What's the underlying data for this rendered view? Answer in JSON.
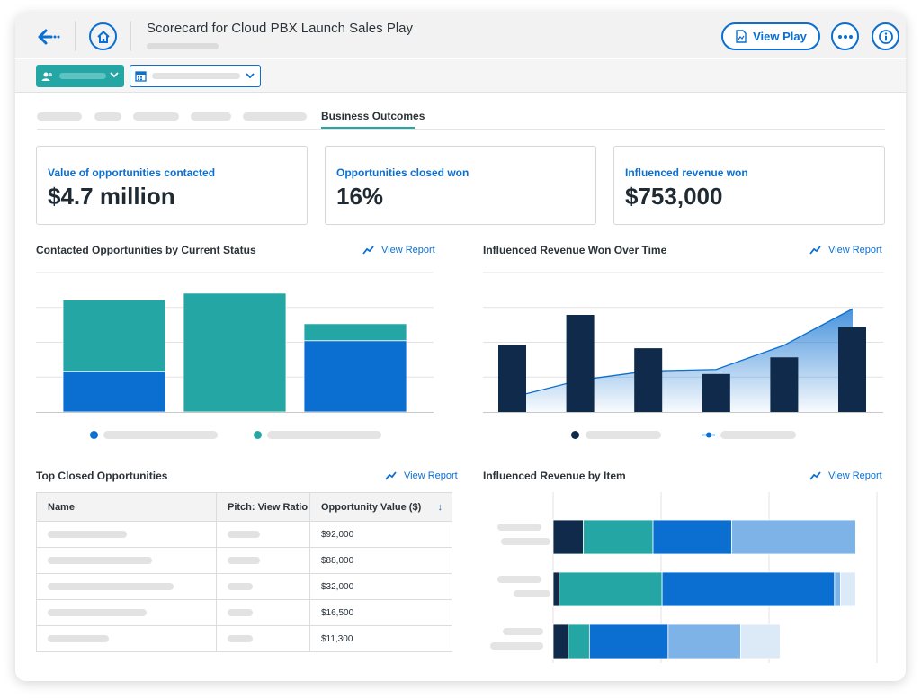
{
  "header": {
    "title": "Scorecard for Cloud PBX Launch Sales Play",
    "view_play_label": "View Play"
  },
  "tabs": {
    "active_label": "Business Outcomes"
  },
  "kpis": [
    {
      "label": "Value of opportunities contacted",
      "value": "$4.7 million"
    },
    {
      "label": "Opportunities closed won",
      "value": "16%"
    },
    {
      "label": "Influenced revenue won",
      "value": "$753,000"
    }
  ],
  "sections": {
    "contacted": {
      "title": "Contacted Opportunities by Current Status",
      "link": "View Report"
    },
    "influenced_time": {
      "title": "Influenced Revenue Won Over Time",
      "link": "View Report"
    },
    "top_closed": {
      "title": "Top Closed Opportunities",
      "link": "View Report"
    },
    "by_item": {
      "title": "Influenced Revenue by Item",
      "link": "View Report"
    }
  },
  "table": {
    "columns": [
      "Name",
      "Pitch: View Ratio",
      "Opportunity Value ($)"
    ],
    "rows": [
      {
        "value": "$92,000"
      },
      {
        "value": "$88,000"
      },
      {
        "value": "$32,000"
      },
      {
        "value": "$16,500"
      },
      {
        "value": "$11,300"
      }
    ]
  },
  "colors": {
    "teal": "#23a6a4",
    "blue": "#0b6fd1",
    "navy": "#0f2a4a",
    "light_blue": "#7db3e6",
    "pale_blue": "#dce9f7"
  },
  "chart_data": [
    {
      "type": "bar",
      "stacked": true,
      "categories": [
        "",
        "",
        ""
      ],
      "series": [
        {
          "values": [
            1.2,
            0,
            2.1
          ],
          "color": "#0b6fd1"
        },
        {
          "values": [
            2.1,
            3.5,
            0.5
          ],
          "color": "#23a6a4"
        }
      ],
      "ylim": [
        0,
        4
      ],
      "grid": true
    },
    {
      "type": "bar",
      "categories": [
        "",
        "",
        "",
        "",
        "",
        ""
      ],
      "series": [
        {
          "values": [
            2.2,
            3.2,
            2.1,
            1.25,
            1.8,
            2.8
          ],
          "color": "#0f2a4a"
        },
        {
          "type": "area",
          "values": [
            0.6,
            1.05,
            1.35,
            1.4,
            2.2,
            3.4
          ],
          "color": "#0b6fd1"
        }
      ],
      "ylim": [
        0,
        4
      ],
      "grid": true
    },
    {
      "type": "bar",
      "orientation": "horizontal",
      "stacked": true,
      "categories": [
        "",
        "",
        ""
      ],
      "series": [
        {
          "values": [
            10,
            2,
            5
          ],
          "color": "#0f2a4a"
        },
        {
          "values": [
            23,
            34,
            7
          ],
          "color": "#23a6a4"
        },
        {
          "values": [
            26,
            57,
            26
          ],
          "color": "#0b6fd1"
        },
        {
          "values": [
            41,
            2,
            24
          ],
          "color": "#7db3e6"
        },
        {
          "values": [
            0,
            5,
            13
          ],
          "color": "#dce9f7"
        }
      ],
      "xlim": [
        0,
        110
      ],
      "grid": true
    }
  ]
}
